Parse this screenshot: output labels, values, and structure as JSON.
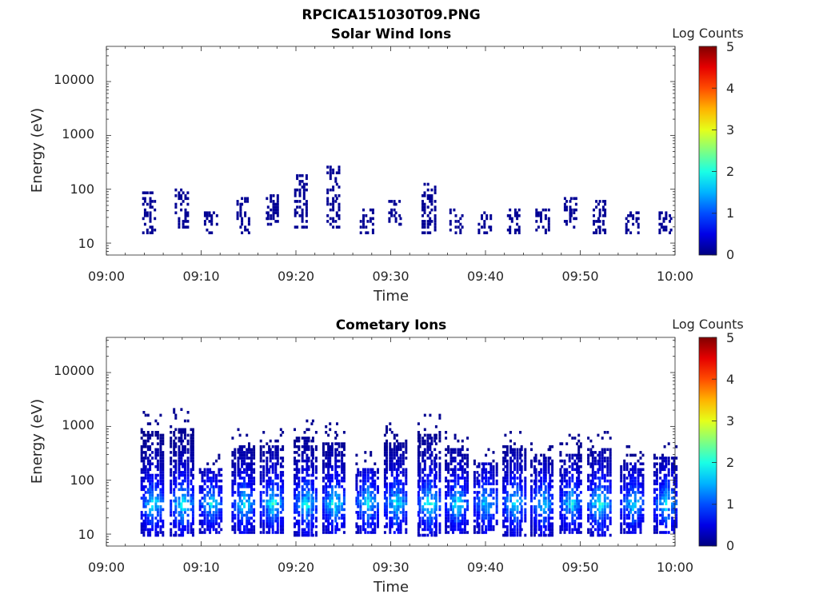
{
  "figure_title": "RPCICA151030T09.PNG",
  "chart_data": [
    {
      "type": "heatmap",
      "title": "Solar Wind Ions",
      "xlabel": "Time",
      "ylabel": "Energy (eV)",
      "x_range": [
        "09:00",
        "10:00"
      ],
      "x_ticks": [
        "09:00",
        "09:10",
        "09:20",
        "09:30",
        "09:40",
        "09:50",
        "10:00"
      ],
      "y_scale": "log",
      "y_range": [
        6,
        45000
      ],
      "y_ticks": [
        "10",
        "100",
        "1000",
        "10000"
      ],
      "colorbar": {
        "label": "Log Counts",
        "range": [
          0,
          5
        ],
        "ticks": [
          "0",
          "1",
          "2",
          "3",
          "4",
          "5"
        ],
        "colormap": "jet"
      },
      "bursts": [
        {
          "time": "09:04.5",
          "e_low": 14,
          "e_high": 90,
          "peak_log": 0.1
        },
        {
          "time": "09:08",
          "e_low": 18,
          "e_high": 100,
          "peak_log": 0.1
        },
        {
          "time": "09:11",
          "e_low": 14,
          "e_high": 35,
          "peak_log": 0.1
        },
        {
          "time": "09:14.5",
          "e_low": 14,
          "e_high": 70,
          "peak_log": 0.1
        },
        {
          "time": "09:17.5",
          "e_low": 20,
          "e_high": 80,
          "peak_log": 0.1
        },
        {
          "time": "09:20.5",
          "e_low": 18,
          "e_high": 180,
          "peak_log": 0.1
        },
        {
          "time": "09:24",
          "e_low": 18,
          "e_high": 250,
          "peak_log": 0.1
        },
        {
          "time": "09:27.5",
          "e_low": 14,
          "e_high": 40,
          "peak_log": 0.1
        },
        {
          "time": "09:30.5",
          "e_low": 20,
          "e_high": 60,
          "peak_log": 0.1
        },
        {
          "time": "09:34",
          "e_low": 14,
          "e_high": 120,
          "peak_log": 0.1
        },
        {
          "time": "09:37",
          "e_low": 14,
          "e_high": 40,
          "peak_log": 0.1
        },
        {
          "time": "09:40",
          "e_low": 14,
          "e_high": 35,
          "peak_log": 0.1
        },
        {
          "time": "09:43",
          "e_low": 14,
          "e_high": 40,
          "peak_log": 0.1
        },
        {
          "time": "09:46",
          "e_low": 14,
          "e_high": 40,
          "peak_log": 0.1
        },
        {
          "time": "09:49",
          "e_low": 18,
          "e_high": 70,
          "peak_log": 0.1
        },
        {
          "time": "09:52",
          "e_low": 14,
          "e_high": 60,
          "peak_log": 0.1
        },
        {
          "time": "09:55.5",
          "e_low": 14,
          "e_high": 35,
          "peak_log": 0.1
        },
        {
          "time": "09:59",
          "e_low": 14,
          "e_high": 35,
          "peak_log": 0.1
        }
      ]
    },
    {
      "type": "heatmap",
      "title": "Cometary Ions",
      "xlabel": "Time",
      "ylabel": "Energy (eV)",
      "x_range": [
        "09:00",
        "10:00"
      ],
      "x_ticks": [
        "09:00",
        "09:10",
        "09:20",
        "09:30",
        "09:40",
        "09:50",
        "10:00"
      ],
      "y_scale": "log",
      "y_range": [
        6,
        45000
      ],
      "y_ticks": [
        "10",
        "100",
        "1000",
        "10000"
      ],
      "colorbar": {
        "label": "Log Counts",
        "range": [
          0,
          5
        ],
        "ticks": [
          "0",
          "1",
          "2",
          "3",
          "4",
          "5"
        ],
        "colormap": "jet"
      },
      "bursts": [
        {
          "time": "09:04.8",
          "e_low": 8,
          "e_high": 800,
          "peak_log": 1.9
        },
        {
          "time": "09:08",
          "e_low": 8,
          "e_high": 900,
          "peak_log": 2.0
        },
        {
          "time": "09:11",
          "e_low": 10,
          "e_high": 150,
          "peak_log": 1.8
        },
        {
          "time": "09:14.5",
          "e_low": 10,
          "e_high": 400,
          "peak_log": 1.9
        },
        {
          "time": "09:17.5",
          "e_low": 10,
          "e_high": 400,
          "peak_log": 2.0
        },
        {
          "time": "09:21",
          "e_low": 8,
          "e_high": 600,
          "peak_log": 2.0
        },
        {
          "time": "09:24",
          "e_low": 10,
          "e_high": 500,
          "peak_log": 2.0
        },
        {
          "time": "09:27.5",
          "e_low": 10,
          "e_high": 150,
          "peak_log": 1.9
        },
        {
          "time": "09:30.5",
          "e_low": 10,
          "e_high": 500,
          "peak_log": 2.0
        },
        {
          "time": "09:34",
          "e_low": 8,
          "e_high": 700,
          "peak_log": 2.1
        },
        {
          "time": "09:37",
          "e_low": 10,
          "e_high": 350,
          "peak_log": 1.9
        },
        {
          "time": "09:40",
          "e_low": 10,
          "e_high": 200,
          "peak_log": 1.8
        },
        {
          "time": "09:43",
          "e_low": 8,
          "e_high": 400,
          "peak_log": 1.9
        },
        {
          "time": "09:46",
          "e_low": 8,
          "e_high": 250,
          "peak_log": 1.8
        },
        {
          "time": "09:49",
          "e_low": 10,
          "e_high": 300,
          "peak_log": 1.8
        },
        {
          "time": "09:52",
          "e_low": 8,
          "e_high": 350,
          "peak_log": 2.1
        },
        {
          "time": "09:55.5",
          "e_low": 10,
          "e_high": 200,
          "peak_log": 1.8
        },
        {
          "time": "09:59",
          "e_low": 10,
          "e_high": 250,
          "peak_log": 1.9
        }
      ]
    }
  ]
}
